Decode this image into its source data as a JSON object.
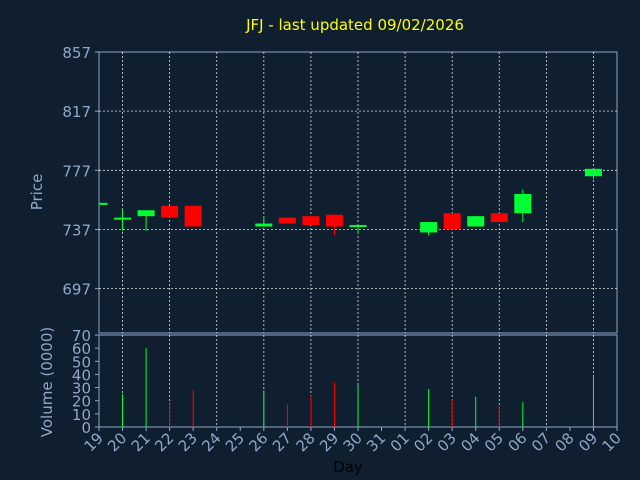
{
  "chart_data": {
    "type": "candlestick",
    "title": "JFJ - last updated 09/02/2026",
    "price_panel": {
      "ylabel": "Price",
      "ylim": [
        667,
        857
      ],
      "yticks": [
        697,
        737,
        777,
        817,
        857
      ]
    },
    "volume_panel": {
      "ylabel": "Volume (0000)",
      "ylim": [
        0,
        70
      ],
      "yticks": [
        0,
        10,
        20,
        30,
        40,
        50,
        60,
        70
      ]
    },
    "xlabel": "Day",
    "x_tick_labels": [
      "19",
      "20",
      "21",
      "22",
      "23",
      "24",
      "25",
      "26",
      "27",
      "28",
      "29",
      "30",
      "31",
      "01",
      "02",
      "03",
      "04",
      "05",
      "06",
      "07",
      "08",
      "09",
      "10"
    ],
    "x_gridlines_at": [
      1,
      3,
      5,
      7,
      9,
      11,
      13,
      15,
      17,
      19,
      21
    ],
    "colors": {
      "up": "#00ff33",
      "down": "#ff0000",
      "title": "#ffff00",
      "axis": "#8fa8c8",
      "background": "#0f1f30",
      "grid": "#ffffff"
    },
    "candles": [
      {
        "day": "19",
        "open": 754,
        "high": 755,
        "low": 753,
        "close": 755,
        "volume": 0
      },
      {
        "day": "20",
        "open": 744,
        "high": 751,
        "low": 736,
        "close": 745,
        "volume": 25
      },
      {
        "day": "21",
        "open": 746,
        "high": 750,
        "low": 736,
        "close": 750,
        "volume": 60
      },
      {
        "day": "22",
        "open": 753,
        "high": 753,
        "low": 745,
        "close": 745,
        "volume": 19
      },
      {
        "day": "23",
        "open": 753,
        "high": 753,
        "low": 739,
        "close": 739,
        "volume": 28
      },
      {
        "day": "26",
        "open": 739,
        "high": 746,
        "low": 739,
        "close": 741,
        "volume": 28
      },
      {
        "day": "27",
        "open": 745,
        "high": 745,
        "low": 741,
        "close": 741,
        "volume": 17
      },
      {
        "day": "28",
        "open": 746,
        "high": 746,
        "low": 740,
        "close": 740,
        "volume": 24
      },
      {
        "day": "29",
        "open": 747,
        "high": 747,
        "low": 733,
        "close": 739,
        "volume": 34
      },
      {
        "day": "30",
        "open": 739,
        "high": 740,
        "low": 734,
        "close": 740,
        "volume": 32
      },
      {
        "day": "02",
        "open": 735,
        "high": 742,
        "low": 733,
        "close": 742,
        "volume": 29
      },
      {
        "day": "03",
        "open": 748,
        "high": 748,
        "low": 737,
        "close": 737,
        "volume": 21
      },
      {
        "day": "04",
        "open": 739,
        "high": 746,
        "low": 739,
        "close": 746,
        "volume": 23
      },
      {
        "day": "05",
        "open": 748,
        "high": 748,
        "low": 742,
        "close": 742,
        "volume": 16
      },
      {
        "day": "06",
        "open": 748,
        "high": 764,
        "low": 742,
        "close": 761,
        "volume": 19
      },
      {
        "day": "09",
        "open": 773,
        "high": 778,
        "low": 771,
        "close": 778,
        "volume": 38
      }
    ]
  }
}
